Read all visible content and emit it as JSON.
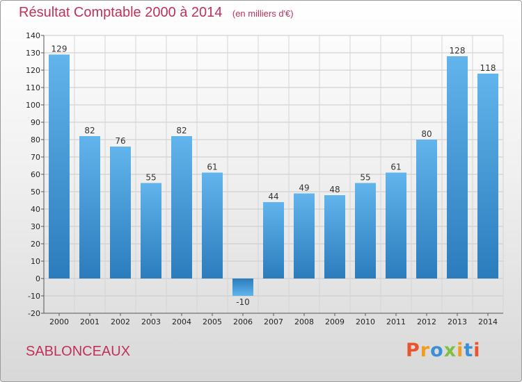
{
  "header": {
    "title": "Résultat Comptable 2000 à 2014",
    "unit_note": "(en milliers d'€)"
  },
  "footer": {
    "commune": "SABLONCEAUX",
    "logo_text": "Proxiti",
    "logo_colors": [
      "#e8542e",
      "#f39b1c",
      "#3b8fd6",
      "#7cc242",
      "#f39b1c",
      "#3b8fd6",
      "#e8542e"
    ]
  },
  "chart_data": {
    "type": "bar",
    "title": "Résultat Comptable 2000 à 2014",
    "subtitle": "(en milliers d'€)",
    "xlabel": "",
    "ylabel": "",
    "categories": [
      "2000",
      "2001",
      "2002",
      "2003",
      "2004",
      "2005",
      "2006",
      "2007",
      "2008",
      "2009",
      "2010",
      "2011",
      "2012",
      "2013",
      "2014"
    ],
    "values": [
      129,
      82,
      76,
      55,
      82,
      61,
      -10,
      44,
      49,
      48,
      55,
      61,
      80,
      128,
      118
    ],
    "data_labels": [
      "129",
      "82",
      "76",
      "55",
      "82",
      "61",
      "-10",
      "44",
      "49",
      "48",
      "55",
      "61",
      "80",
      "128",
      "118"
    ],
    "ylim": [
      -20,
      140
    ],
    "yticks": [
      -20,
      -10,
      0,
      10,
      20,
      30,
      40,
      50,
      60,
      70,
      80,
      90,
      100,
      110,
      120,
      130,
      140
    ],
    "grid": true,
    "bar_color_light": "#62b4ec",
    "bar_color_dark": "#2a7cbc"
  }
}
